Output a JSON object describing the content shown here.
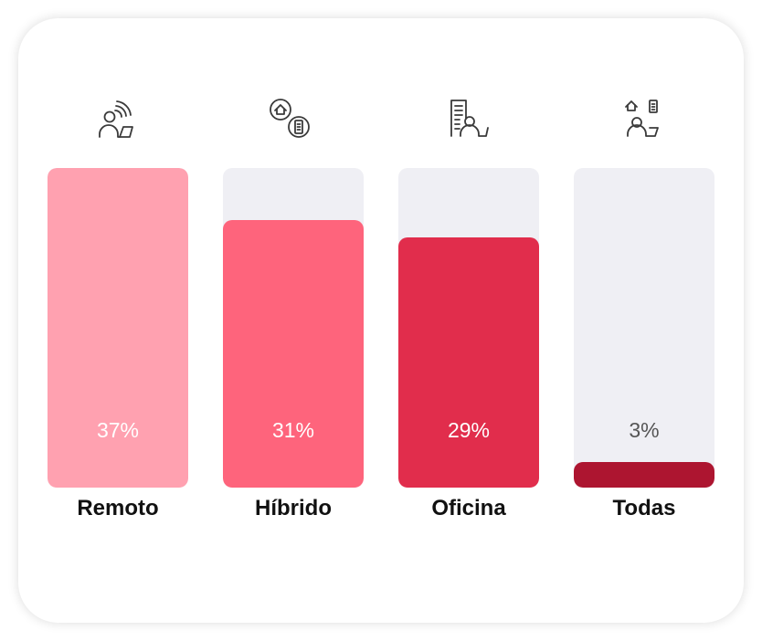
{
  "chart_data": {
    "type": "bar",
    "title": "",
    "xlabel": "",
    "ylabel": "",
    "ylim": [
      0,
      37
    ],
    "grid": false,
    "legend": "none",
    "categories": [
      "Remoto",
      "Híbrido",
      "Oficina",
      "Todas"
    ],
    "values": [
      37,
      31,
      29,
      3
    ],
    "value_labels": [
      "37%",
      "31%",
      "29%",
      "3%"
    ],
    "colors": [
      "#ffa1b0",
      "#fe647c",
      "#e12d4c",
      "#ad1530"
    ],
    "label_colors": [
      "#ffffff",
      "#ffffff",
      "#ffffff",
      "#555555"
    ],
    "icons": [
      "remote-worker-icon",
      "home-and-office-icon",
      "office-worker-icon",
      "all-locations-icon"
    ],
    "track_color": "#efeff4"
  }
}
